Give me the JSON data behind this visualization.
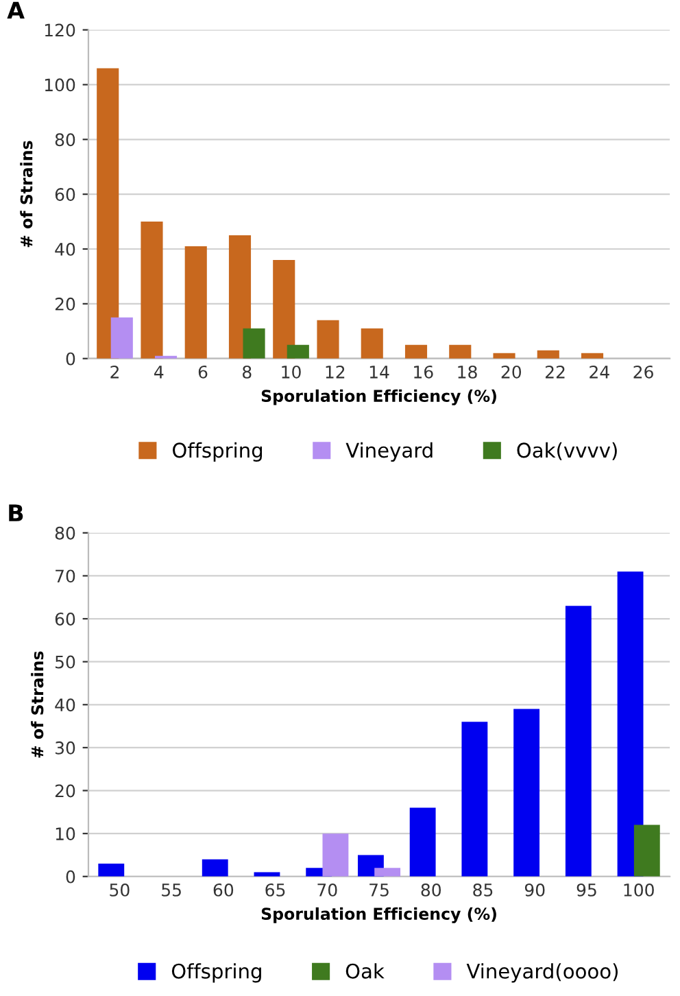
{
  "chart_data": [
    {
      "type": "bar",
      "title": "A",
      "xlabel": "Sporulation Efficiency (%)",
      "ylabel": "# of Strains",
      "categories": [
        "2",
        "4",
        "6",
        "8",
        "10",
        "12",
        "14",
        "16",
        "18",
        "20",
        "22",
        "24",
        "26"
      ],
      "series": [
        {
          "name": "Offspring",
          "color": "#c8681e",
          "values": [
            106,
            50,
            41,
            45,
            36,
            14,
            11,
            5,
            5,
            2,
            3,
            2,
            0
          ]
        },
        {
          "name": "Vineyard",
          "color": "#b48ef2",
          "values": [
            15,
            1,
            0,
            0,
            0,
            0,
            0,
            0,
            0,
            0,
            0,
            0,
            0
          ]
        },
        {
          "name": "Oak(vvvv)",
          "color": "#3f7a1f",
          "values": [
            0,
            0,
            0,
            11,
            5,
            0,
            0,
            0,
            0,
            0,
            0,
            0,
            0
          ]
        }
      ],
      "ylim": [
        0,
        120
      ],
      "yticks": [
        0,
        20,
        40,
        60,
        80,
        100,
        120
      ],
      "grid": "y",
      "legend": "bottom"
    },
    {
      "type": "bar",
      "title": "B",
      "xlabel": "Sporulation Efficiency (%)",
      "ylabel": "# of Strains",
      "categories": [
        "50",
        "55",
        "60",
        "65",
        "70",
        "75",
        "80",
        "85",
        "90",
        "95",
        "100"
      ],
      "series": [
        {
          "name": "Offspring",
          "color": "#0000f0",
          "values": [
            3,
            0,
            4,
            1,
            2,
            5,
            16,
            36,
            39,
            63,
            71
          ]
        },
        {
          "name": "Oak",
          "color": "#3f7a1f",
          "values": [
            0,
            0,
            0,
            0,
            0,
            0,
            0,
            0,
            0,
            0,
            12
          ]
        },
        {
          "name": "Vineyard(oooo)",
          "color": "#b48ef2",
          "values": [
            0,
            0,
            0,
            0,
            10,
            2,
            0,
            0,
            0,
            0,
            0
          ]
        }
      ],
      "ylim": [
        0,
        80
      ],
      "yticks": [
        0,
        10,
        20,
        30,
        40,
        50,
        60,
        70,
        80
      ],
      "grid": "y",
      "legend": "bottom"
    }
  ]
}
